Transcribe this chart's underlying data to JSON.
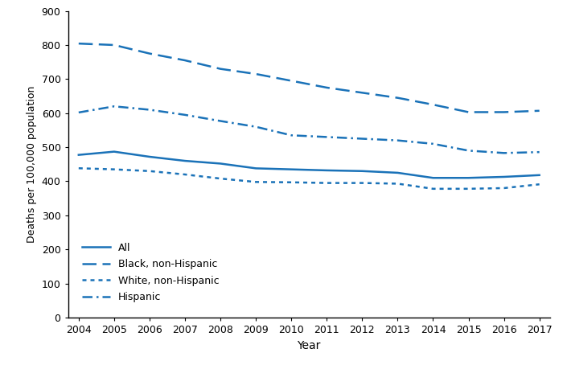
{
  "years": [
    2004,
    2005,
    2006,
    2007,
    2008,
    2009,
    2010,
    2011,
    2012,
    2013,
    2014,
    2015,
    2016,
    2017
  ],
  "all": [
    477.5,
    487.0,
    472.0,
    460.0,
    452.0,
    438.0,
    435.0,
    432.0,
    430.0,
    425.0,
    410.0,
    410.0,
    413.0,
    418.1
  ],
  "black_non_hispanic": [
    804.3,
    800.0,
    775.0,
    755.0,
    730.0,
    715.0,
    695.0,
    675.0,
    660.0,
    645.0,
    625.0,
    603.0,
    603.0,
    607.0
  ],
  "white_non_hispanic": [
    438.3,
    435.0,
    430.0,
    420.0,
    408.0,
    398.0,
    397.0,
    395.0,
    395.0,
    393.0,
    378.0,
    378.0,
    380.0,
    391.1
  ],
  "hispanic": [
    602.0,
    620.0,
    610.0,
    595.0,
    577.0,
    560.0,
    535.0,
    530.0,
    525.0,
    520.0,
    510.0,
    490.0,
    483.0,
    485.7
  ],
  "line_color": "#1a72b8",
  "ylabel": "Deaths per 100,000 population",
  "xlabel": "Year",
  "ylim": [
    0,
    900
  ],
  "yticks": [
    0,
    100,
    200,
    300,
    400,
    500,
    600,
    700,
    800,
    900
  ],
  "legend_labels": [
    "All",
    "Black, non-Hispanic",
    "White, non-Hispanic",
    "Hispanic"
  ],
  "background_color": "#ffffff"
}
